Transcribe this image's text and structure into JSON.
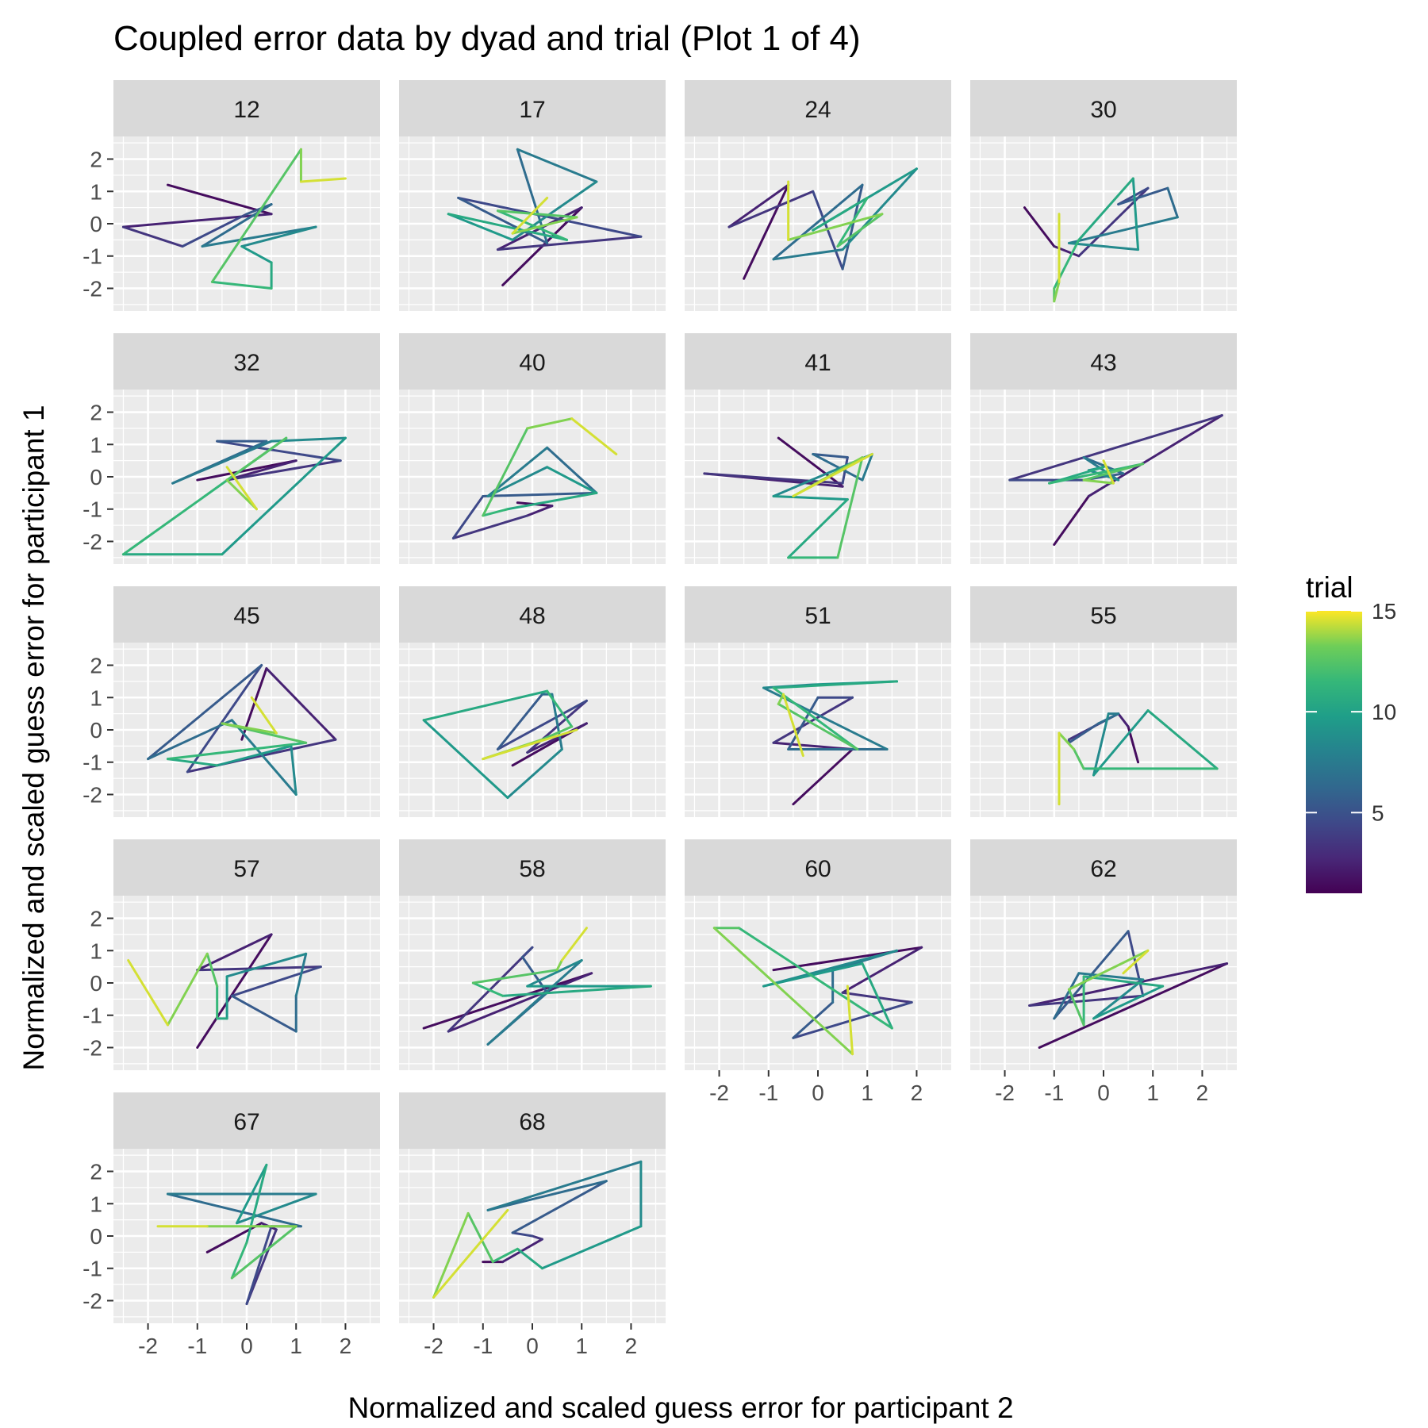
{
  "chart_data": {
    "type": "line",
    "title": "Coupled error data by dyad and trial (Plot 1 of 4)",
    "xlabel": "Normalized and scaled guess error for participant 2",
    "ylabel": "Normalized and scaled guess error for participant 1",
    "xlim": [
      -2.7,
      2.7
    ],
    "ylim": [
      -2.7,
      2.7
    ],
    "xticks": [
      -2,
      -1,
      0,
      1,
      2
    ],
    "yticks": [
      -2,
      -1,
      0,
      1,
      2
    ],
    "tick_labels": [
      "-2",
      "-1",
      "0",
      "1",
      "2"
    ],
    "grid": true,
    "colorscale": "viridis",
    "legend": {
      "title": "trial",
      "min": 1,
      "max": 15,
      "ticks": [
        5,
        10,
        15
      ],
      "placement": "right"
    },
    "panels": [
      {
        "dyad": "12",
        "x": [
          -1.6,
          0.5,
          -2.5,
          -1.3,
          0.0,
          0.5,
          -0.9,
          1.4,
          -0.1,
          0.5,
          0.5,
          -0.7,
          1.1,
          1.1,
          2.0
        ],
        "y": [
          1.2,
          0.3,
          -0.1,
          -0.7,
          0.3,
          0.6,
          -0.7,
          -0.1,
          -0.7,
          -1.2,
          -2.0,
          -1.8,
          2.3,
          1.3,
          1.4
        ]
      },
      {
        "dyad": "17",
        "x": [
          -0.6,
          1.0,
          -0.7,
          2.2,
          -1.5,
          0.3,
          -0.3,
          1.3,
          -0.4,
          -1.7,
          0.7,
          -0.7,
          0.9,
          -0.4,
          0.3
        ],
        "y": [
          -1.9,
          0.5,
          -0.8,
          -0.4,
          0.8,
          -0.6,
          2.3,
          1.3,
          -0.5,
          0.3,
          -0.5,
          0.4,
          0.2,
          -0.3,
          0.8
        ]
      },
      {
        "dyad": "24",
        "x": [
          -1.5,
          -0.6,
          -1.8,
          -0.1,
          0.5,
          0.9,
          -0.9,
          0.5,
          2.0,
          -0.1,
          1.0,
          0.4,
          1.3,
          -0.6,
          -0.6
        ],
        "y": [
          -1.7,
          1.2,
          -0.1,
          1.0,
          -1.4,
          1.2,
          -1.1,
          -0.8,
          1.7,
          -0.2,
          0.8,
          -0.7,
          0.3,
          -0.5,
          1.3
        ]
      },
      {
        "dyad": "30",
        "x": [
          -1.6,
          -1.0,
          -0.5,
          0.9,
          0.3,
          1.3,
          1.5,
          -0.7,
          0.7,
          0.6,
          -0.5,
          -1.0,
          -1.0,
          -0.9,
          -0.9
        ],
        "y": [
          0.5,
          -0.7,
          -1.0,
          1.1,
          0.6,
          1.1,
          0.2,
          -0.6,
          -0.8,
          1.4,
          -0.5,
          -2.0,
          -2.4,
          -1.8,
          0.3
        ]
      },
      {
        "dyad": "32",
        "x": [
          -1.0,
          1.0,
          -0.4,
          1.9,
          -0.6,
          0.4,
          -1.5,
          0.5,
          2.0,
          -0.5,
          -2.5,
          0.8,
          -0.4,
          0.2,
          -0.4
        ],
        "y": [
          -0.1,
          0.5,
          -0.1,
          0.5,
          1.1,
          1.1,
          -0.2,
          1.1,
          1.2,
          -2.4,
          -2.4,
          1.2,
          -0.1,
          -1.0,
          0.3
        ]
      },
      {
        "dyad": "40",
        "x": [
          -0.3,
          0.4,
          -0.1,
          -1.6,
          -1.0,
          1.3,
          0.3,
          -0.9,
          0.3,
          1.3,
          -0.5,
          -1.0,
          -0.1,
          0.8,
          1.7
        ],
        "y": [
          -0.8,
          -0.9,
          -1.2,
          -1.9,
          -0.6,
          -0.5,
          0.9,
          -0.6,
          0.3,
          -0.5,
          -1.0,
          -1.2,
          1.5,
          1.8,
          0.7
        ]
      },
      {
        "dyad": "41",
        "x": [
          -0.8,
          0.5,
          -2.3,
          0.5,
          0.6,
          -0.1,
          0.9,
          1.1,
          -0.9,
          0.6,
          -0.6,
          0.4,
          0.9,
          -0.5,
          1.1
        ],
        "y": [
          1.2,
          -0.3,
          0.1,
          -0.2,
          0.6,
          0.7,
          -0.1,
          0.7,
          -0.6,
          -0.7,
          -2.5,
          -2.5,
          0.6,
          -0.6,
          0.7
        ]
      },
      {
        "dyad": "43",
        "x": [
          -1.0,
          -0.3,
          2.4,
          -1.9,
          -0.4,
          0.4,
          -0.4,
          0.3,
          -0.3,
          0.0,
          -1.1,
          0.8,
          -0.4,
          0.2,
          0.0
        ],
        "y": [
          -2.1,
          -0.6,
          1.9,
          -0.1,
          -0.1,
          0.1,
          0.6,
          -0.1,
          0.2,
          0.3,
          -0.2,
          0.4,
          -0.1,
          -0.2,
          0.5
        ]
      },
      {
        "dyad": "45",
        "x": [
          -0.1,
          0.4,
          1.8,
          -1.2,
          0.3,
          -2.0,
          -0.3,
          1.0,
          0.9,
          -0.6,
          -1.6,
          1.2,
          -0.5,
          0.6,
          0.1
        ],
        "y": [
          -0.3,
          1.9,
          -0.3,
          -1.3,
          2.0,
          -0.9,
          0.3,
          -2.0,
          -0.5,
          -1.1,
          -0.9,
          -0.4,
          0.2,
          -0.1,
          1.0
        ]
      },
      {
        "dyad": "48",
        "x": [
          -0.4,
          1.1,
          -0.1,
          1.1,
          -0.7,
          0.2,
          0.4,
          0.6,
          -0.5,
          -2.2,
          0.3,
          0.8,
          0.2,
          -1.0,
          0.9
        ],
        "y": [
          -1.1,
          0.2,
          -0.7,
          0.9,
          -0.6,
          1.1,
          1.1,
          -0.6,
          -2.1,
          0.3,
          1.2,
          0.1,
          -0.3,
          -0.9,
          0.0
        ]
      },
      {
        "dyad": "51",
        "x": [
          -0.5,
          0.7,
          -0.9,
          0.7,
          0.0,
          -0.6,
          1.4,
          -1.1,
          -0.1,
          1.6,
          -0.9,
          0.8,
          -0.8,
          -0.7,
          -0.3
        ],
        "y": [
          -2.3,
          -0.6,
          -0.4,
          1.0,
          1.0,
          -0.6,
          -0.6,
          1.3,
          1.4,
          1.5,
          1.3,
          -0.6,
          0.8,
          1.1,
          -0.8
        ]
      },
      {
        "dyad": "55",
        "x": [
          0.7,
          0.5,
          0.3,
          -0.7,
          -0.7,
          -0.1,
          0.3,
          0.1,
          -0.2,
          0.9,
          2.3,
          -0.4,
          -0.6,
          -0.9,
          -0.9
        ],
        "y": [
          -1.0,
          0.1,
          0.5,
          -0.3,
          -0.4,
          0.2,
          0.5,
          0.5,
          -1.4,
          0.6,
          -1.2,
          -1.2,
          -0.6,
          -0.1,
          -2.3
        ]
      },
      {
        "dyad": "57",
        "x": [
          -1.0,
          0.5,
          -1.0,
          1.5,
          -0.3,
          1.0,
          1.0,
          1.2,
          -0.4,
          -0.4,
          -0.6,
          -0.6,
          -0.8,
          -1.6,
          -2.4
        ],
        "y": [
          -2.0,
          1.5,
          0.4,
          0.5,
          -0.4,
          -1.5,
          -0.4,
          0.9,
          0.2,
          -1.1,
          -1.1,
          -0.1,
          0.9,
          -1.3,
          0.7
        ]
      },
      {
        "dyad": "58",
        "x": [
          -2.2,
          1.2,
          -1.7,
          0.0,
          -0.2,
          0.3,
          -0.9,
          1.0,
          -0.1,
          2.4,
          -0.6,
          -1.2,
          0.5,
          0.6,
          1.1
        ],
        "y": [
          -1.4,
          0.3,
          -1.5,
          1.1,
          0.8,
          -0.3,
          -1.9,
          0.7,
          -0.1,
          -0.1,
          -0.4,
          0.0,
          0.4,
          0.7,
          1.7
        ]
      },
      {
        "dyad": "60",
        "x": [
          -0.9,
          2.1,
          0.5,
          1.9,
          -0.5,
          0.3,
          0.3,
          1.6,
          -1.1,
          0.9,
          1.5,
          -1.6,
          -2.1,
          0.7,
          0.6
        ],
        "y": [
          0.4,
          1.1,
          -0.3,
          -0.6,
          -1.7,
          -0.6,
          0.4,
          1.0,
          -0.1,
          0.6,
          -1.4,
          1.7,
          1.7,
          -2.2,
          -0.1
        ]
      },
      {
        "dyad": "62",
        "x": [
          -1.3,
          2.5,
          -1.5,
          0.8,
          0.5,
          -1.0,
          -0.5,
          0.8,
          -0.2,
          1.2,
          -0.4,
          -0.4,
          -0.7,
          0.9,
          0.4
        ],
        "y": [
          -2.0,
          0.6,
          -0.7,
          -0.4,
          1.6,
          -1.1,
          0.3,
          0.1,
          -1.1,
          -0.1,
          0.2,
          -1.3,
          -0.2,
          1.0,
          0.3
        ]
      },
      {
        "dyad": "67",
        "x": [
          -0.8,
          0.3,
          0.6,
          0.0,
          0.5,
          1.1,
          -1.6,
          1.4,
          -0.2,
          0.4,
          0.0,
          -0.3,
          1.0,
          -0.8,
          -1.8
        ],
        "y": [
          -0.5,
          0.4,
          0.2,
          -2.1,
          0.3,
          0.3,
          1.3,
          1.3,
          0.4,
          2.2,
          -0.2,
          -1.3,
          0.3,
          0.3,
          0.3
        ]
      },
      {
        "dyad": "68",
        "x": [
          -1.0,
          -0.6,
          0.2,
          0.0,
          -0.4,
          1.5,
          -0.9,
          2.2,
          2.2,
          0.2,
          -0.3,
          -0.8,
          -1.3,
          -2.0,
          -0.5
        ],
        "y": [
          -0.8,
          -0.8,
          -0.1,
          0.0,
          0.1,
          1.7,
          0.8,
          2.3,
          0.3,
          -1.0,
          -0.4,
          -0.8,
          0.7,
          -1.9,
          0.8
        ]
      }
    ]
  }
}
